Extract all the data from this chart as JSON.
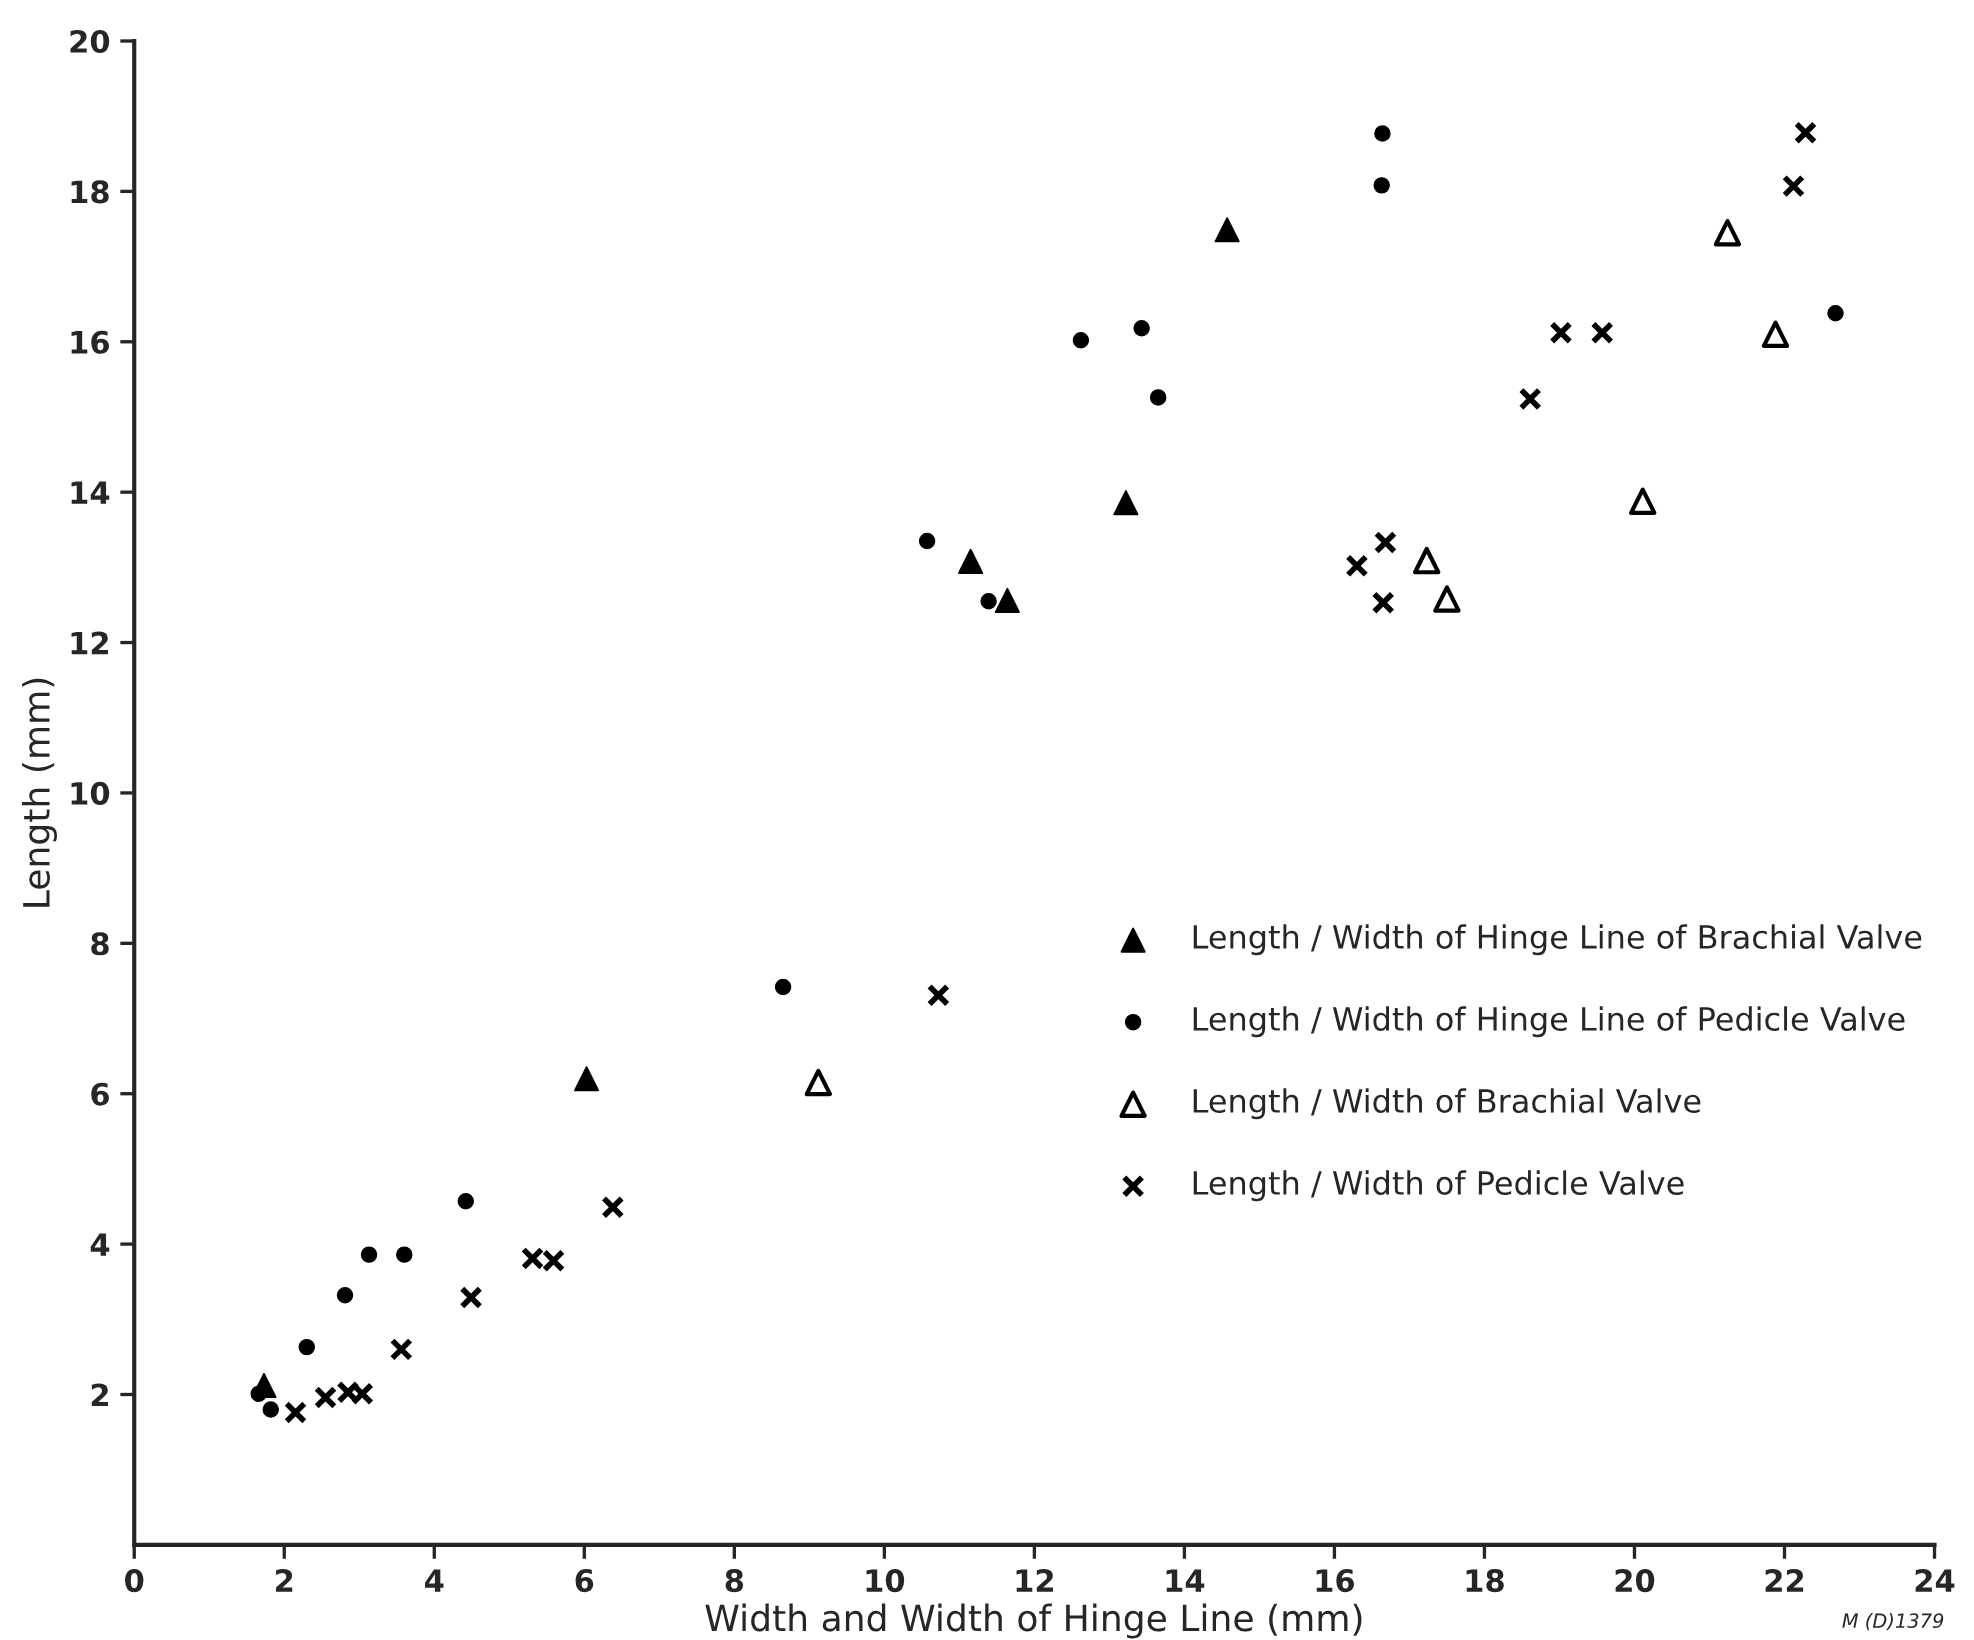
{
  "chart_data": {
    "type": "scatter",
    "xlabel": "Width and Width of Hinge Line (mm)",
    "ylabel": "Length (mm)",
    "xlim": [
      0,
      24
    ],
    "ylim": [
      0,
      20
    ],
    "xticks": [
      0,
      2,
      4,
      6,
      8,
      10,
      12,
      14,
      16,
      18,
      20,
      22,
      24
    ],
    "yticks": [
      2,
      4,
      6,
      8,
      10,
      12,
      14,
      16,
      18,
      20
    ],
    "grid": false,
    "legend": "bottom right",
    "annotations": [
      "M (D)1379"
    ],
    "series": [
      {
        "name": "Length / Width of Hinge Line of Brachial Valve",
        "color": "#000000",
        "marker": "triangle",
        "x": [
          1.73,
          6.03,
          11.15,
          11.64,
          13.22,
          14.57
        ],
        "values": [
          2.12,
          6.2,
          13.08,
          12.56,
          13.86,
          17.49
        ]
      },
      {
        "name": "Length / Width of Hinge Line of Pedicle Valve",
        "color": "#000000",
        "marker": "circle",
        "x": [
          1.66,
          1.82,
          2.3,
          2.81,
          3.13,
          3.6,
          4.42,
          8.65,
          10.57,
          11.39,
          12.62,
          13.43,
          13.65,
          16.64,
          16.63,
          22.68
        ],
        "values": [
          2.01,
          1.8,
          2.63,
          3.32,
          3.86,
          3.86,
          4.57,
          7.42,
          13.35,
          12.55,
          16.02,
          16.18,
          15.26,
          18.77,
          18.08,
          16.38
        ]
      },
      {
        "name": "Length / Width of Brachial Valve",
        "color": "#000000",
        "marker": "triangle-open",
        "x": [
          9.12,
          17.23,
          17.5,
          20.11,
          21.24,
          21.88
        ],
        "values": [
          6.15,
          13.09,
          12.58,
          13.88,
          17.45,
          16.1
        ]
      },
      {
        "name": "Length / Width of Pedicle Valve",
        "color": "#000000",
        "marker": "cross",
        "x": [
          2.15,
          2.55,
          2.85,
          3.04,
          3.56,
          4.49,
          5.31,
          5.59,
          6.38,
          10.72,
          16.3,
          16.68,
          16.65,
          18.61,
          19.02,
          19.57,
          22.12,
          22.28
        ],
        "values": [
          1.76,
          1.96,
          2.03,
          2.01,
          2.6,
          3.29,
          3.81,
          3.78,
          4.49,
          7.31,
          13.02,
          13.33,
          12.53,
          15.24,
          16.12,
          16.12,
          18.07,
          18.78
        ]
      }
    ]
  }
}
